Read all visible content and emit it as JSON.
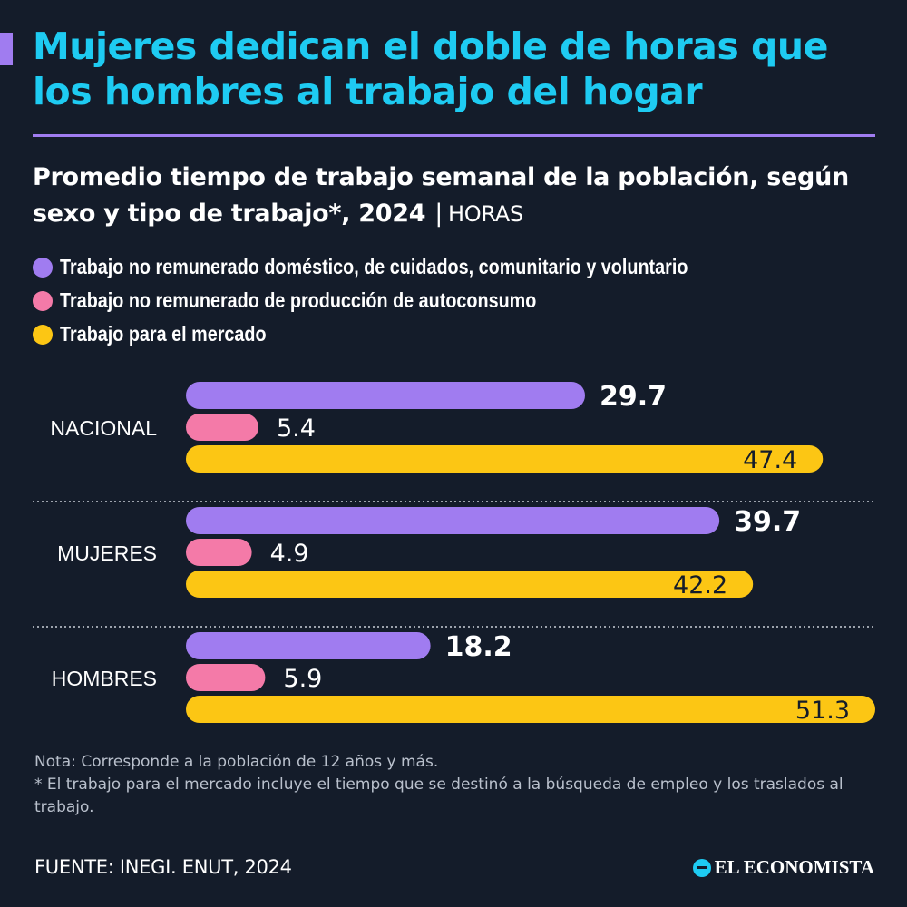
{
  "title": "Mujeres dedican el doble de horas que los hombres al trabajo del hogar",
  "subtitle": "Promedio tiempo de trabajo semanal de la población, según sexo y tipo de trabajo*, 2024",
  "subtitle_unit": "HORAS",
  "legend": [
    {
      "label": "Trabajo no remunerado doméstico, de cuidados, comunitario y voluntario",
      "color": "#a07cf0"
    },
    {
      "label": "Trabajo no remunerado de producción de autoconsumo",
      "color": "#f47aa8"
    },
    {
      "label": "Trabajo para el mercado",
      "color": "#fcc614"
    }
  ],
  "chart_data": {
    "type": "bar",
    "orientation": "horizontal",
    "categories": [
      "NACIONAL",
      "MUJERES",
      "HOMBRES"
    ],
    "series": [
      {
        "name": "Trabajo no remunerado doméstico, de cuidados, comunitario y voluntario",
        "color": "#a07cf0",
        "values": [
          29.7,
          39.7,
          18.2
        ],
        "labels": [
          "29.7",
          "39.7",
          "18.2"
        ]
      },
      {
        "name": "Trabajo no remunerado de producción de autoconsumo",
        "color": "#f47aa8",
        "values": [
          5.4,
          4.9,
          5.9
        ],
        "labels": [
          "5.4",
          "4.9",
          "5.9"
        ]
      },
      {
        "name": "Trabajo para el mercado",
        "color": "#fcc614",
        "values": [
          47.4,
          42.2,
          51.3
        ],
        "labels": [
          "47.4",
          "42.2",
          "51.3"
        ]
      }
    ],
    "xlim": [
      0,
      51.3
    ],
    "unit": "HORAS"
  },
  "notes": [
    "Nota: Corresponde a la población de 12 años y más.",
    "* El trabajo para el mercado incluye el tiempo que se destinó a la búsqueda de empleo y los traslados al trabajo."
  ],
  "source": "FUENTE: INEGI. ENUT, 2024",
  "brand": "EL ECONOMISTA"
}
